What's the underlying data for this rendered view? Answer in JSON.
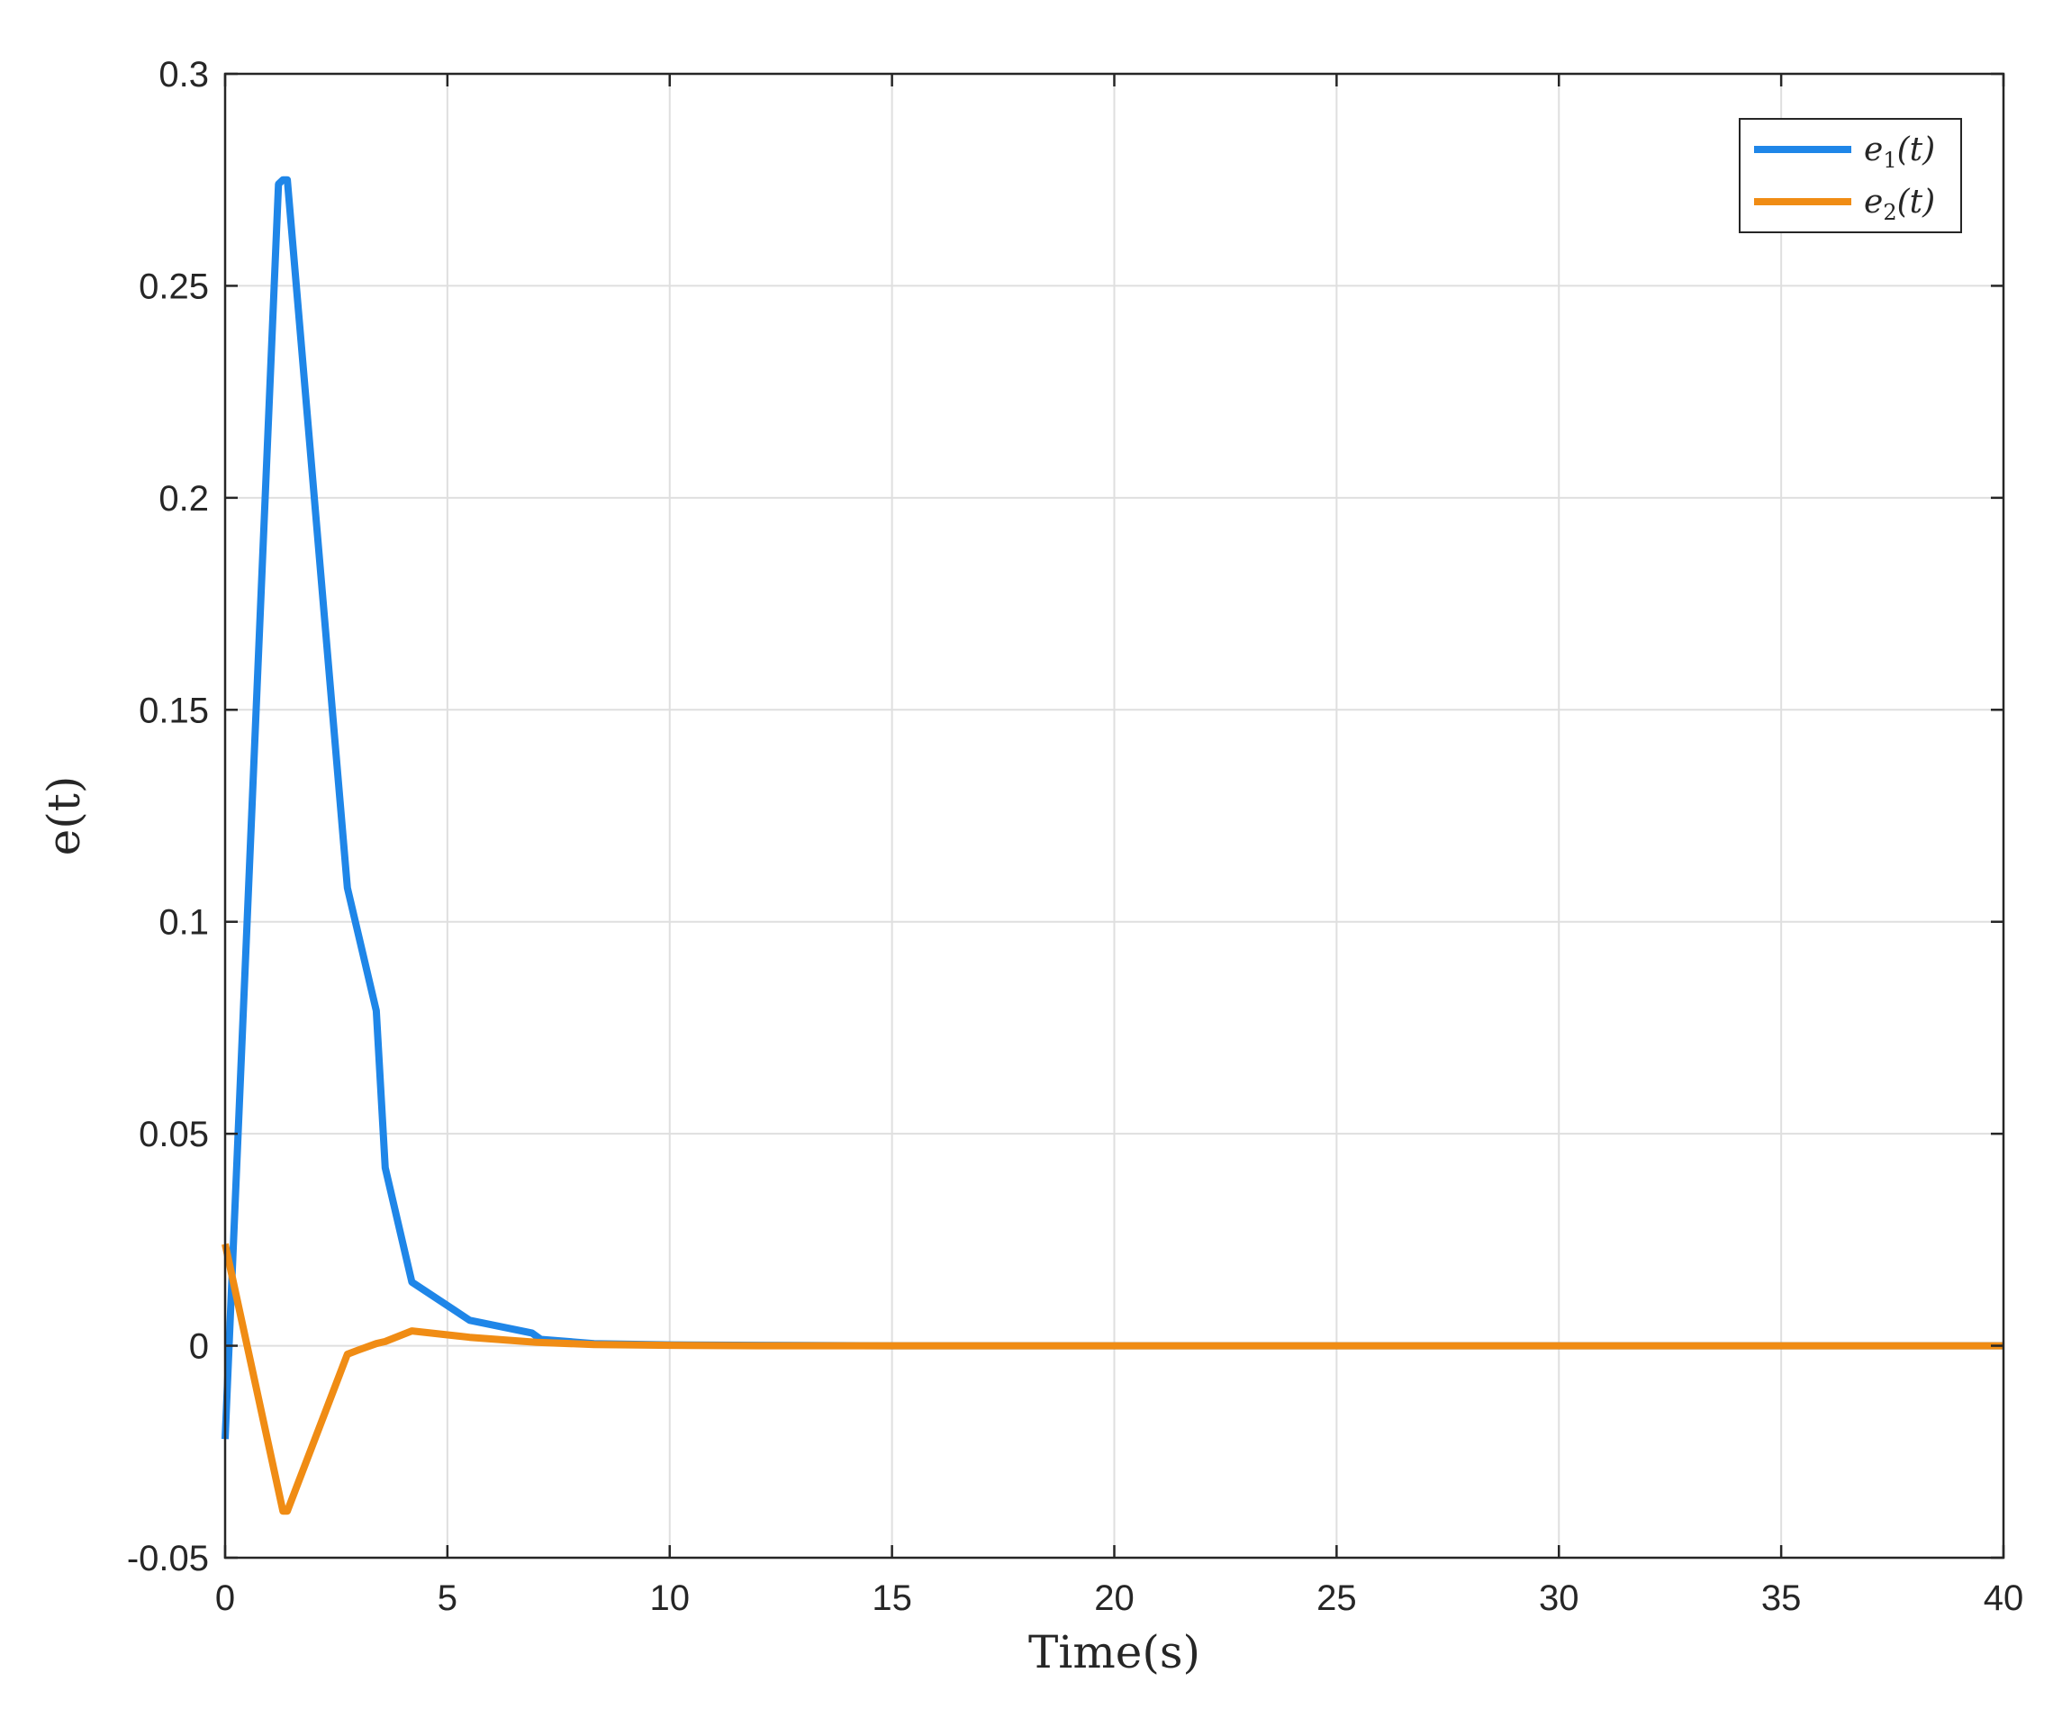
{
  "chart_data": {
    "type": "line",
    "title": "",
    "xlabel": "Time(s)",
    "ylabel": "e(t)",
    "xlim": [
      0,
      40
    ],
    "ylim": [
      -0.05,
      0.3
    ],
    "xticks": [
      0,
      5,
      10,
      15,
      20,
      25,
      30,
      35,
      40
    ],
    "yticks": [
      -0.05,
      0,
      0.05,
      0.1,
      0.15,
      0.2,
      0.25,
      0.3
    ],
    "xtick_labels": [
      "0",
      "5",
      "10",
      "15",
      "20",
      "25",
      "30",
      "35",
      "40"
    ],
    "ytick_labels": [
      "-0.05",
      "0",
      "0.05",
      "0.1",
      "0.15",
      "0.2",
      "0.25",
      "0.3"
    ],
    "grid": true,
    "legend_position": "top-right",
    "series": [
      {
        "name": "e1(t)",
        "legend_base": "e",
        "legend_sub": "1",
        "legend_tail": "(t)",
        "color": "#1f86e8",
        "x": [
          0,
          1.2,
          1.3,
          1.4,
          2.75,
          3.4,
          3.6,
          4.2,
          5.5,
          6.9,
          7.1,
          8.3,
          10,
          12,
          15,
          20,
          25,
          30,
          35,
          40
        ],
        "y": [
          -0.022,
          0.274,
          0.275,
          0.275,
          0.108,
          0.079,
          0.042,
          0.015,
          0.006,
          0.003,
          0.0015,
          0.0005,
          0.0002,
          0.0001,
          0,
          0,
          0,
          0,
          0,
          0
        ]
      },
      {
        "name": "e2(t)",
        "legend_base": "e",
        "legend_sub": "2",
        "legend_tail": "(t)",
        "color": "#f08c14",
        "x": [
          0,
          1.3,
          1.4,
          2.75,
          3.0,
          3.4,
          3.6,
          4.2,
          5.5,
          7.0,
          8.3,
          10,
          12,
          15,
          20,
          25,
          30,
          35,
          40
        ],
        "y": [
          0.024,
          -0.039,
          -0.039,
          -0.002,
          -0.001,
          0.0005,
          0.001,
          0.0035,
          0.002,
          0.0008,
          0.0003,
          0.0001,
          0,
          0,
          0,
          0,
          0,
          0,
          0
        ]
      }
    ]
  }
}
